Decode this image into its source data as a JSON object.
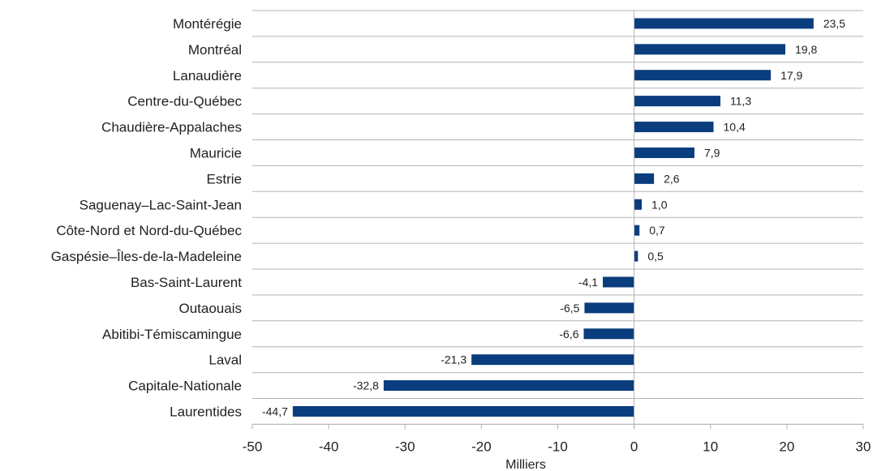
{
  "chart_data": {
    "type": "bar",
    "orientation": "horizontal",
    "categories": [
      "Montérégie",
      "Montréal",
      "Lanaudière",
      "Centre-du-Québec",
      "Chaudière-Appalaches",
      "Mauricie",
      "Estrie",
      "Saguenay–Lac-Saint-Jean",
      "Côte-Nord et Nord-du-Québec",
      "Gaspésie–Îles-de-la-Madeleine",
      "Bas-Saint-Laurent",
      "Outaouais",
      "Abitibi-Témiscamingue",
      "Laval",
      "Capitale-Nationale",
      "Laurentides"
    ],
    "values": [
      23.5,
      19.8,
      17.9,
      11.3,
      10.4,
      7.9,
      2.6,
      1.0,
      0.7,
      0.5,
      -4.1,
      -6.5,
      -6.6,
      -21.3,
      -32.8,
      -44.7
    ],
    "value_labels": [
      "23,5",
      "19,8",
      "17,9",
      "11,3",
      "10,4",
      "7,9",
      "2,6",
      "1,0",
      "0,7",
      "0,5",
      "-4,1",
      "-6,5",
      "-6,6",
      "-21,3",
      "-32,8",
      "-44,7"
    ],
    "xticks": [
      -50,
      -40,
      -30,
      -20,
      -10,
      0,
      10,
      20,
      30
    ],
    "xlim": [
      -50,
      30
    ],
    "xlabel": "Milliers",
    "ylabel": "",
    "title": "",
    "grid": "horizontal",
    "bar_color": "#0a3d7e",
    "grid_color": "#b3b3b3"
  }
}
